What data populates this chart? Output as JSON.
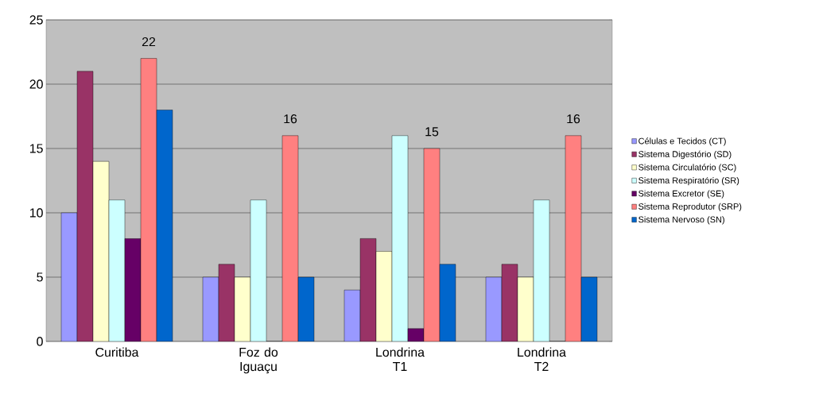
{
  "chart_data": {
    "type": "bar",
    "categories": [
      "Curitiba",
      "Foz do Iguaçu",
      "Londrina T1",
      "Londrina T2"
    ],
    "series": [
      {
        "name": "Células e Tecidos (CT)",
        "color": "#9999ff",
        "values": [
          10,
          5,
          4,
          5
        ]
      },
      {
        "name": "Sistema Digestório (SD)",
        "color": "#993366",
        "values": [
          21,
          6,
          8,
          6
        ]
      },
      {
        "name": "Sistema Circulatório (SC)",
        "color": "#ffffcc",
        "values": [
          14,
          5,
          7,
          5
        ]
      },
      {
        "name": "Sistema Respiratório  (SR)",
        "color": "#ccffff",
        "values": [
          11,
          11,
          16,
          11
        ]
      },
      {
        "name": "Sistema Excretor (SE)",
        "color": "#660066",
        "values": [
          8,
          0,
          1,
          0
        ]
      },
      {
        "name": "Sistema Reprodutor (SRP)",
        "color": "#ff8080",
        "values": [
          22,
          16,
          15,
          16
        ],
        "value_labels": [
          "22",
          "16",
          "15",
          "16"
        ]
      },
      {
        "name": "Sistema Nervoso (SN)",
        "color": "#0066cc",
        "values": [
          18,
          5,
          6,
          5
        ]
      }
    ],
    "ylim": [
      0,
      25
    ],
    "yticks": [
      0,
      5,
      10,
      15,
      20,
      25
    ],
    "grid": "y",
    "legend": "right"
  }
}
